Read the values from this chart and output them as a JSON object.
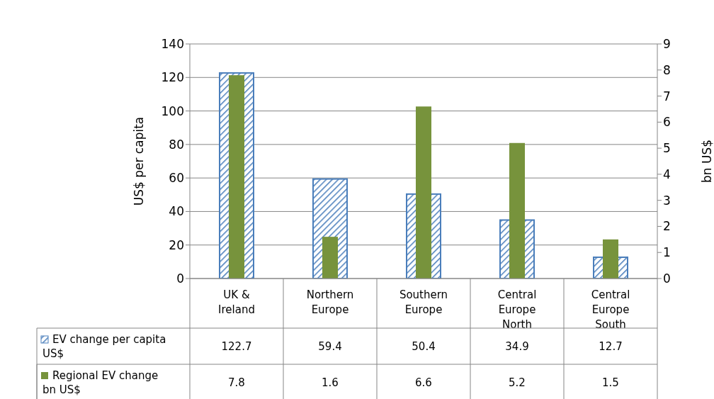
{
  "chart_data": {
    "type": "bar",
    "categories": [
      "UK & Ireland",
      "Northern Europe",
      "Southern Europe",
      "Central Europe North",
      "Central Europe South"
    ],
    "series": [
      {
        "name": "EV change per capita US$",
        "color": "#4a7ebb",
        "values": [
          122.7,
          59.4,
          50.4,
          34.9,
          12.7
        ]
      },
      {
        "name": "Regional EV change bn US$",
        "color": "#77933c",
        "values": [
          7.8,
          1.6,
          6.6,
          5.2,
          1.5
        ],
        "axis": "y2"
      }
    ],
    "ylabel": "US$ per capita",
    "y2label": "bn US$",
    "ylim": [
      0,
      140
    ],
    "yticks": [
      0,
      20,
      40,
      60,
      80,
      100,
      120,
      140
    ],
    "y2lim": [
      0,
      9
    ],
    "y2ticks": [
      0,
      1,
      2,
      3,
      4,
      5,
      6,
      7,
      8,
      9
    ],
    "grid": "y",
    "legend": "bottom",
    "data_labels": true
  }
}
